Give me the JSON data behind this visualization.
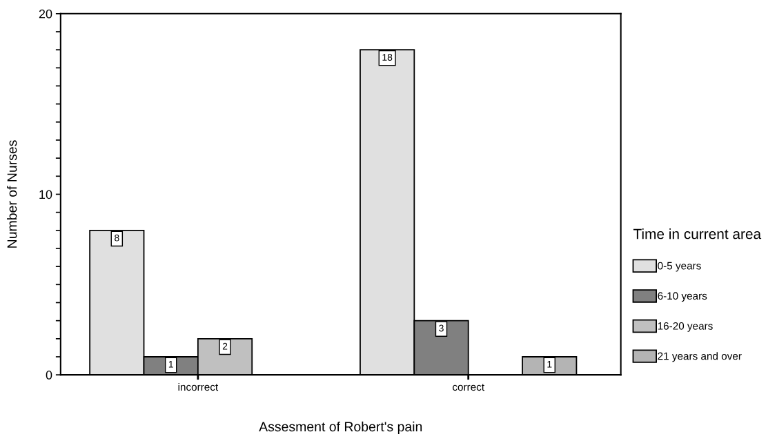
{
  "chart_data": {
    "type": "bar",
    "xlabel": "Assesment of Robert's pain",
    "ylabel": "Number of Nurses",
    "legend_title": "Time in current area",
    "categories": [
      "incorrect",
      "correct"
    ],
    "series": [
      {
        "name": "0-5 years",
        "color": "#e0e0e0",
        "values": [
          8,
          18
        ]
      },
      {
        "name": "6-10 years",
        "color": "#808080",
        "values": [
          1,
          3
        ]
      },
      {
        "name": "16-20 years",
        "color": "#c0c0c0",
        "values": [
          2,
          null
        ]
      },
      {
        "name": "21 years and over",
        "color": "#b4b4b4",
        "values": [
          null,
          1
        ]
      }
    ],
    "ylim": [
      0,
      20
    ],
    "yticks": [
      0,
      {
        "value": 1,
        "label": null
      },
      {
        "value": 2,
        "label": null
      },
      {
        "value": 3,
        "label": null
      },
      {
        "value": 4,
        "label": null
      },
      {
        "value": 5,
        "label": null
      },
      {
        "value": 6,
        "label": null
      },
      {
        "value": 7,
        "label": null
      },
      {
        "value": 8,
        "label": null
      },
      {
        "value": 9,
        "label": null
      },
      10,
      {
        "value": 11,
        "label": null
      },
      {
        "value": 12,
        "label": null
      },
      {
        "value": 13,
        "label": null
      },
      {
        "value": 14,
        "label": null
      },
      {
        "value": 15,
        "label": null
      },
      {
        "value": 16,
        "label": null
      },
      {
        "value": 17,
        "label": null
      },
      {
        "value": 18,
        "label": null
      },
      {
        "value": 19,
        "label": null
      },
      20
    ],
    "data_labels": true,
    "grid": false,
    "legend": "right"
  }
}
